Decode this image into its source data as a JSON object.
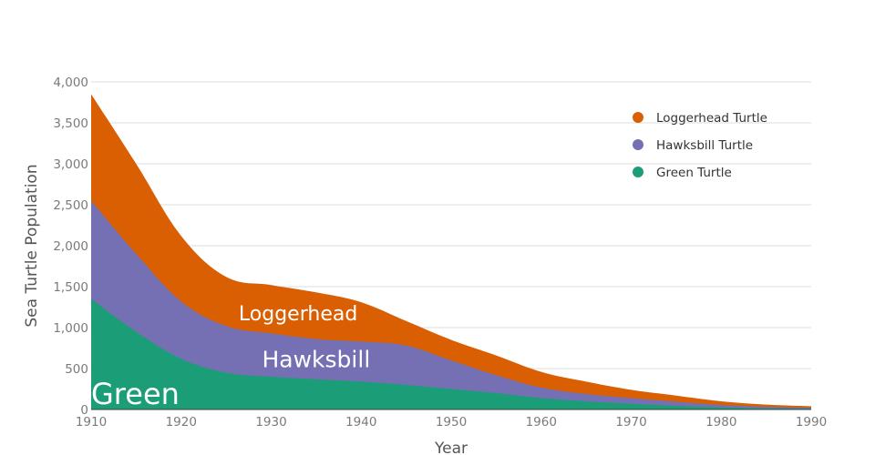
{
  "chart_data": {
    "type": "area",
    "stacked": true,
    "xlabel": "Year",
    "ylabel": "Sea Turtle Population",
    "xlim": [
      1910,
      1990
    ],
    "ylim": [
      0,
      4000
    ],
    "x_ticks": [
      1910,
      1920,
      1930,
      1940,
      1950,
      1960,
      1970,
      1980,
      1990
    ],
    "y_ticks": [
      0,
      500,
      1000,
      1500,
      2000,
      2500,
      3000,
      3500,
      4000
    ],
    "y_tick_labels": [
      "0",
      "500",
      "1,000",
      "1,500",
      "2,000",
      "2,500",
      "3,000",
      "3,500",
      "4,000"
    ],
    "grid": true,
    "legend_position": "top-right",
    "x": [
      1910,
      1915,
      1920,
      1925,
      1930,
      1935,
      1940,
      1945,
      1950,
      1955,
      1960,
      1965,
      1970,
      1975,
      1980,
      1985,
      1990
    ],
    "series": [
      {
        "name": "Green Turtle",
        "color": "#1b9e77",
        "inline_label": "Green",
        "values": [
          1350,
          950,
          620,
          450,
          400,
          370,
          340,
          300,
          250,
          200,
          140,
          100,
          70,
          45,
          25,
          15,
          10
        ]
      },
      {
        "name": "Hawksbill Turtle",
        "color": "#7570b3",
        "inline_label": "Hawksbill",
        "values": [
          1200,
          950,
          700,
          570,
          530,
          490,
          490,
          480,
          350,
          220,
          130,
          90,
          70,
          50,
          30,
          18,
          12
        ]
      },
      {
        "name": "Loggerhead Turtle",
        "color": "#d95f02",
        "inline_label": "Loggerhead",
        "values": [
          1300,
          1100,
          800,
          600,
          590,
          570,
          480,
          300,
          250,
          240,
          190,
          150,
          100,
          75,
          45,
          27,
          18
        ]
      }
    ]
  }
}
